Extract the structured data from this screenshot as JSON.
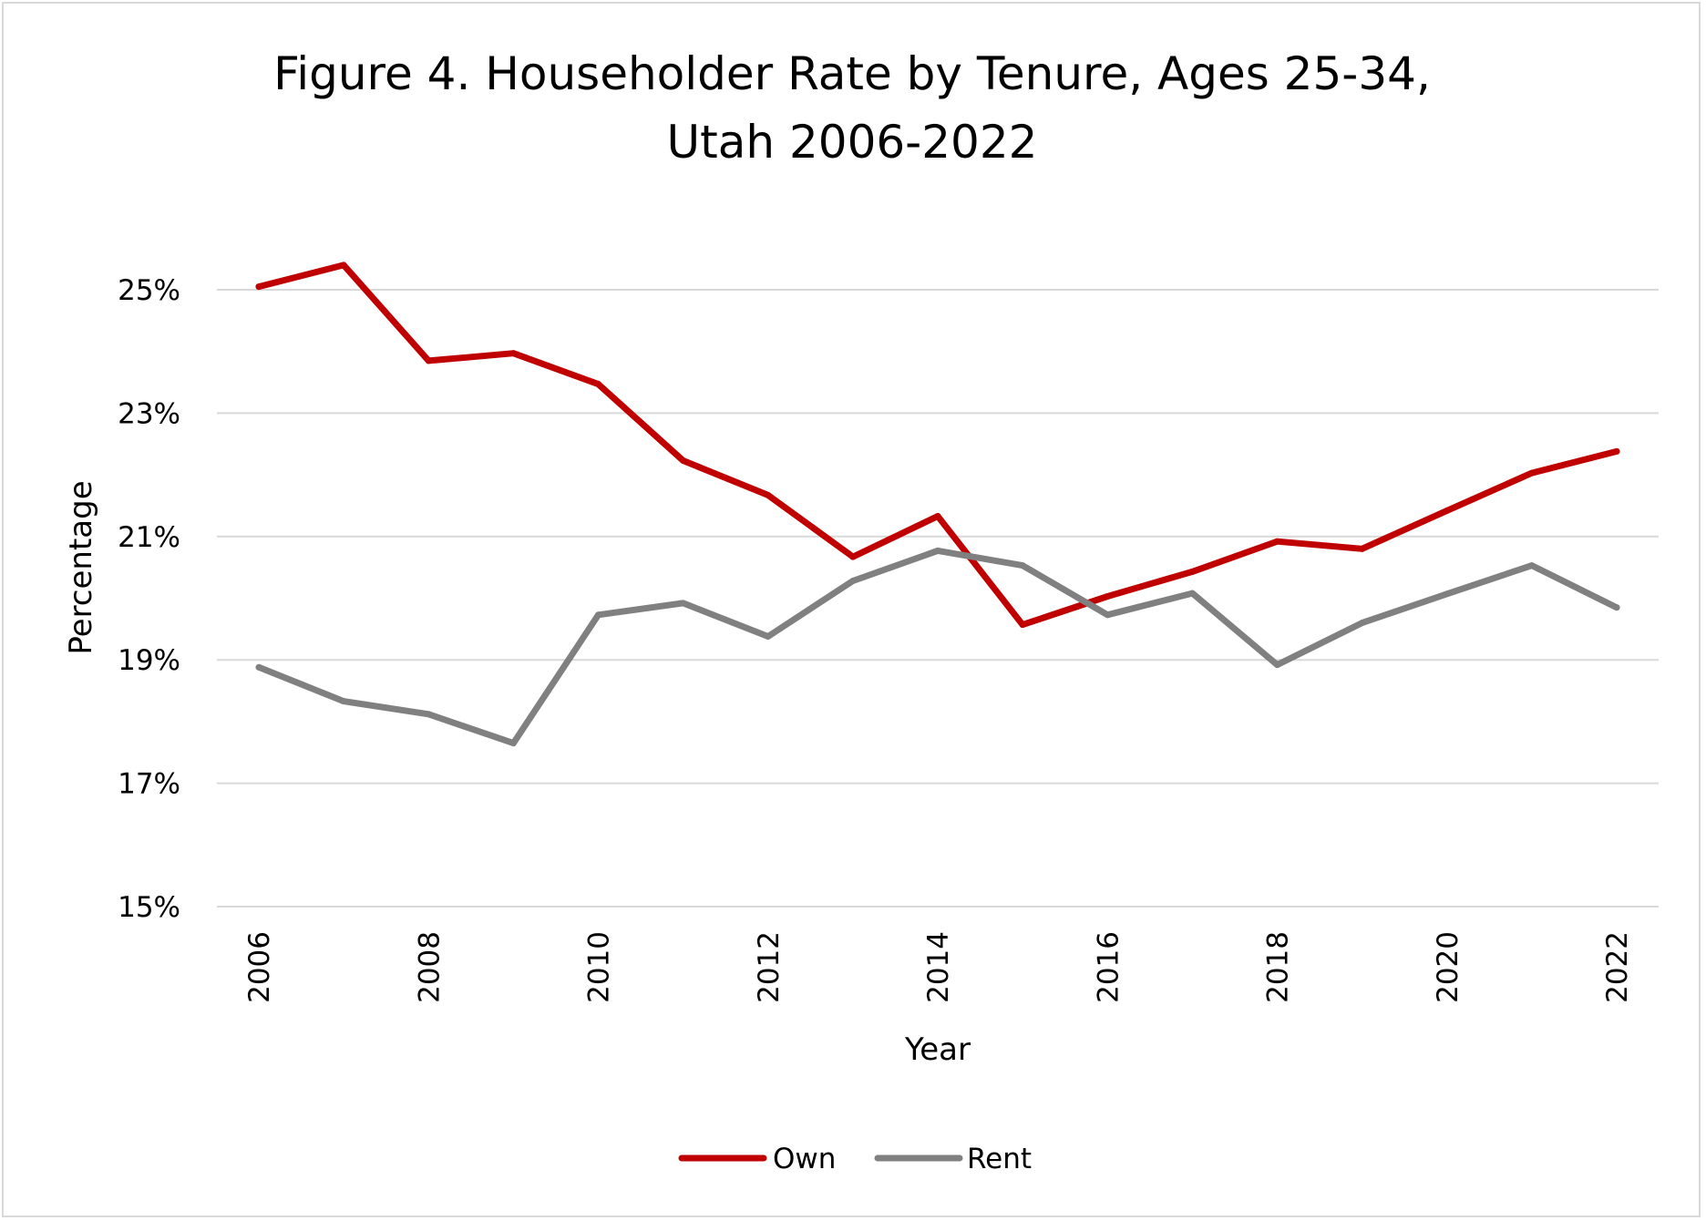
{
  "chart_data": {
    "type": "line",
    "title": [
      "Figure 4. Householder Rate by Tenure, Ages 25-34,",
      "Utah 2006-2022"
    ],
    "xlabel": "Year",
    "ylabel": "Percentage",
    "x": [
      2006,
      2007,
      2008,
      2009,
      2010,
      2011,
      2012,
      2013,
      2014,
      2015,
      2016,
      2017,
      2018,
      2019,
      2020,
      2021,
      2022
    ],
    "x_tick_labels": [
      "2006",
      "2008",
      "2010",
      "2012",
      "2014",
      "2016",
      "2018",
      "2020",
      "2022"
    ],
    "y_tick_values": [
      15,
      17,
      19,
      21,
      23,
      25
    ],
    "y_tick_labels": [
      "15%",
      "17%",
      "19%",
      "21%",
      "23%",
      "25%"
    ],
    "ylim": [
      15,
      26
    ],
    "grid": "horizontal",
    "legend_position": "bottom",
    "series": [
      {
        "name": "Own",
        "color": "#c00000",
        "values": [
          25.05,
          25.4,
          23.85,
          23.97,
          23.47,
          22.23,
          21.67,
          20.67,
          21.33,
          19.57,
          20.03,
          20.43,
          20.92,
          20.8,
          21.42,
          22.03,
          22.38
        ]
      },
      {
        "name": "Rent",
        "color": "#808080",
        "values": [
          18.88,
          18.33,
          18.12,
          17.65,
          19.73,
          19.92,
          19.38,
          20.28,
          20.77,
          20.53,
          19.73,
          20.08,
          18.92,
          19.6,
          20.07,
          20.53,
          19.85
        ]
      }
    ]
  }
}
